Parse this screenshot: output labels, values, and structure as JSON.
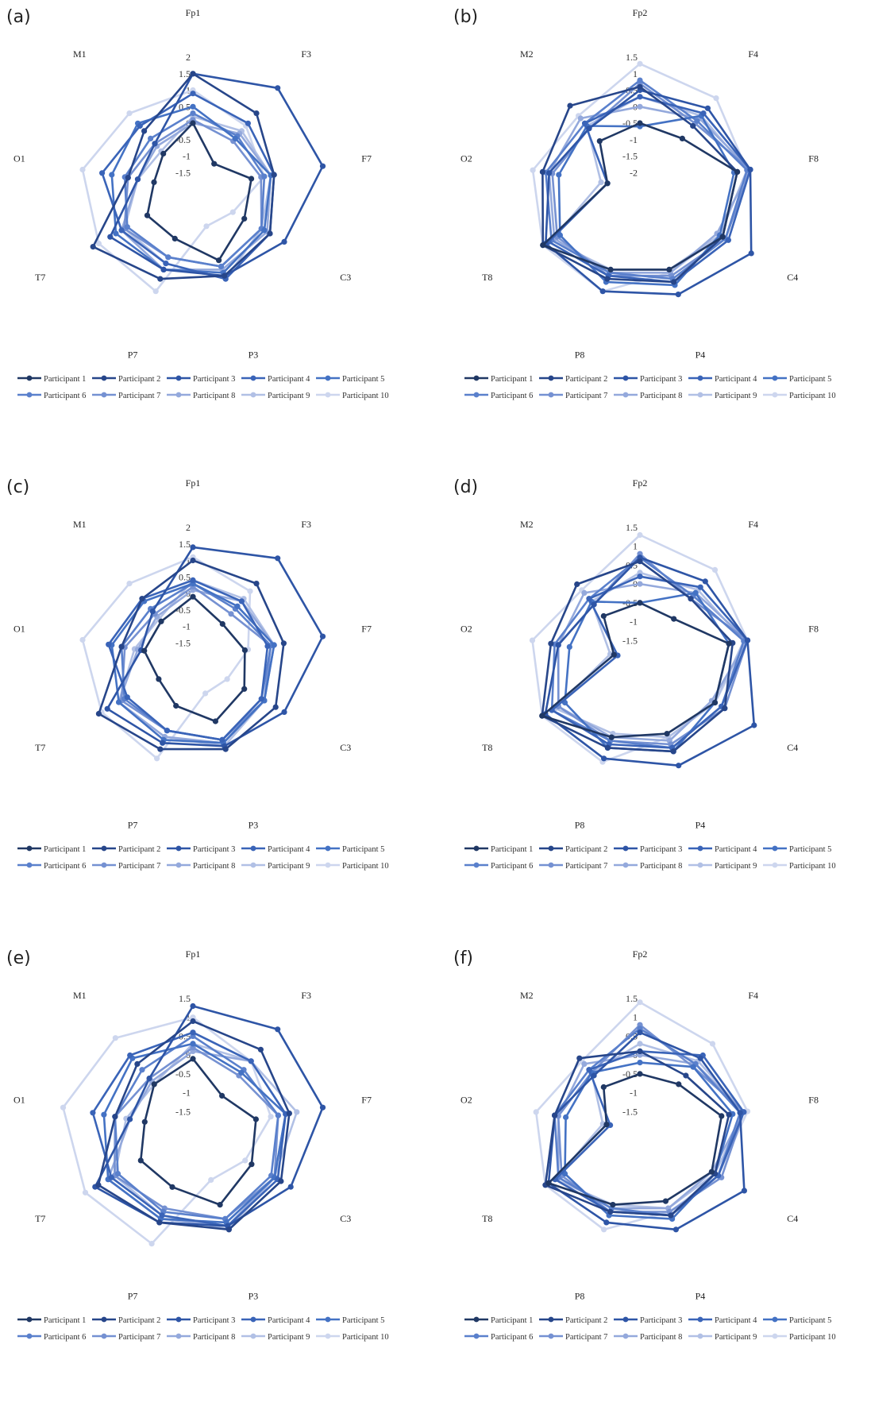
{
  "series_colors": [
    "#203864",
    "#27468a",
    "#2e55a6",
    "#3a64b8",
    "#4472c4",
    "#5a80cc",
    "#7591d2",
    "#94a9dc",
    "#b1c0e5",
    "#cdd6ee"
  ],
  "chart_data": [
    {
      "panel_label": "(a)",
      "type": "radar",
      "categories": [
        "Fp1",
        "F3",
        "F7",
        "C3",
        "P3",
        "P7",
        "T7",
        "O1",
        "M1"
      ],
      "tick_labels": [
        "-1.5",
        "-1",
        "-0.5",
        "0",
        "0.5",
        "1",
        "1.5",
        "2"
      ],
      "rmin": -2.0,
      "rmax": 2.0,
      "series": [
        {
          "name": "Participant 1",
          "values": [
            0.0,
            -1.0,
            -0.2,
            -0.2,
            0.3,
            -0.4,
            -0.4,
            -0.8,
            -0.6
          ]
        },
        {
          "name": "Participant 2",
          "values": [
            1.5,
            1.0,
            0.5,
            0.7,
            0.8,
            0.9,
            1.5,
            0.0,
            0.3
          ]
        },
        {
          "name": "Participant 3",
          "values": [
            1.5,
            2.0,
            2.0,
            1.2,
            0.8,
            0.6,
            0.9,
            -0.3,
            -0.2
          ]
        },
        {
          "name": "Participant 4",
          "values": [
            0.9,
            0.6,
            0.5,
            0.7,
            0.9,
            0.4,
            0.5,
            0.8,
            0.5
          ]
        },
        {
          "name": "Participant 5",
          "values": [
            0.5,
            0.0,
            0.4,
            0.5,
            0.7,
            0.6,
            0.7,
            0.5,
            0.6
          ]
        },
        {
          "name": "Participant 6",
          "values": [
            0.3,
            0.1,
            0.2,
            0.4,
            0.5,
            0.2,
            0.3,
            0.1,
            0.0
          ]
        },
        {
          "name": "Participant 7",
          "values": [
            0.1,
            -0.1,
            0.1,
            0.4,
            0.5,
            0.2,
            0.4,
            0.0,
            -0.2
          ]
        },
        {
          "name": "Participant 8",
          "values": [
            0.0,
            0.2,
            0.4,
            0.6,
            0.6,
            0.6,
            0.5,
            -0.3,
            -0.3
          ]
        },
        {
          "name": "Participant 9",
          "values": [
            0.2,
            0.3,
            0.4,
            0.4,
            0.9,
            0.4,
            0.4,
            -0.3,
            -0.5
          ]
        },
        {
          "name": "Participant 10",
          "values": [
            1.0,
            0.5,
            0.2,
            -0.6,
            -0.8,
            1.3,
            1.3,
            1.4,
            1.0
          ]
        }
      ]
    },
    {
      "panel_label": "(b)",
      "type": "radar",
      "categories": [
        "Fp2",
        "F4",
        "F8",
        "C4",
        "P4",
        "P8",
        "T8",
        "O2",
        "M2"
      ],
      "tick_labels": [
        "-2",
        "-1.5",
        "-1",
        "-0.5",
        "0",
        "0.5",
        "1",
        "1.5"
      ],
      "rmin": -2.5,
      "rmax": 1.5,
      "series": [
        {
          "name": "Participant 1",
          "values": [
            -0.5,
            -0.5,
            0.5,
            0.4,
            0.1,
            0.1,
            0.9,
            -1.5,
            -0.6
          ]
        },
        {
          "name": "Participant 2",
          "values": [
            0.6,
            0.0,
            0.5,
            0.4,
            0.5,
            0.4,
            0.9,
            0.5,
            0.8
          ]
        },
        {
          "name": "Participant 3",
          "values": [
            0.5,
            0.7,
            0.9,
            1.4,
            0.9,
            0.8,
            0.8,
            0.3,
            -0.1
          ]
        },
        {
          "name": "Participant 4",
          "values": [
            0.3,
            0.5,
            0.9,
            0.6,
            0.5,
            0.3,
            0.7,
            -1.5,
            0.1
          ]
        },
        {
          "name": "Participant 5",
          "values": [
            -0.6,
            0.4,
            0.4,
            0.3,
            0.6,
            0.5,
            0.3,
            0.0,
            0.0
          ]
        },
        {
          "name": "Participant 6",
          "values": [
            0.8,
            0.2,
            0.8,
            0.5,
            0.4,
            0.2,
            0.6,
            0.4,
            0.1
          ]
        },
        {
          "name": "Participant 7",
          "values": [
            0.7,
            0.1,
            0.9,
            0.5,
            0.3,
            0.3,
            0.4,
            0.2,
            -0.1
          ]
        },
        {
          "name": "Participant 8",
          "values": [
            0.0,
            0.3,
            0.9,
            0.2,
            0.2,
            0.2,
            0.5,
            0.3,
            0.3
          ]
        },
        {
          "name": "Participant 9",
          "values": [
            0.3,
            0.4,
            0.8,
            0.3,
            0.1,
            0.1,
            0.6,
            -1.3,
            0.0
          ]
        },
        {
          "name": "Participant 10",
          "values": [
            1.3,
            1.1,
            0.8,
            0.3,
            0.2,
            0.8,
            0.9,
            0.8,
            0.4
          ]
        }
      ]
    },
    {
      "panel_label": "(c)",
      "type": "radar",
      "categories": [
        "Fp1",
        "F3",
        "F7",
        "C3",
        "P3",
        "P7",
        "T7",
        "O1",
        "M1"
      ],
      "tick_labels": [
        "-1.5",
        "-1",
        "-0.5",
        "0",
        "0.5",
        "1",
        "1.5",
        "2"
      ],
      "rmin": -2.0,
      "rmax": 2.0,
      "series": [
        {
          "name": "Participant 1",
          "values": [
            -0.1,
            -0.6,
            -0.4,
            -0.2,
            0.0,
            -0.5,
            -0.8,
            -0.5,
            -0.5
          ]
        },
        {
          "name": "Participant 2",
          "values": [
            1.0,
            1.0,
            0.8,
            0.9,
            0.9,
            0.9,
            1.3,
            0.2,
            0.4
          ]
        },
        {
          "name": "Participant 3",
          "values": [
            1.4,
            2.0,
            2.0,
            1.2,
            0.8,
            0.7,
            1.0,
            -0.4,
            -0.1
          ]
        },
        {
          "name": "Participant 4",
          "values": [
            0.4,
            0.3,
            0.3,
            0.4,
            0.6,
            0.3,
            0.3,
            0.6,
            0.4
          ]
        },
        {
          "name": "Participant 5",
          "values": [
            0.3,
            0.1,
            0.5,
            0.5,
            0.7,
            0.6,
            0.6,
            0.5,
            0.3
          ]
        },
        {
          "name": "Participant 6",
          "values": [
            0.3,
            0.0,
            0.4,
            0.4,
            0.6,
            0.3,
            0.4,
            0.2,
            0.0
          ]
        },
        {
          "name": "Participant 7",
          "values": [
            0.2,
            -0.2,
            0.4,
            0.5,
            0.6,
            0.3,
            0.5,
            0.1,
            -0.2
          ]
        },
        {
          "name": "Participant 8",
          "values": [
            0.1,
            0.3,
            0.5,
            0.5,
            0.7,
            0.5,
            0.6,
            -0.3,
            -0.3
          ]
        },
        {
          "name": "Participant 9",
          "values": [
            0.4,
            0.4,
            0.5,
            0.5,
            0.8,
            0.5,
            0.6,
            -0.2,
            -0.4
          ]
        },
        {
          "name": "Participant 10",
          "values": [
            1.1,
            0.7,
            -0.3,
            -0.8,
            -0.9,
            1.2,
            1.2,
            1.4,
            1.0
          ]
        }
      ]
    },
    {
      "panel_label": "(d)",
      "type": "radar",
      "categories": [
        "Fp2",
        "F4",
        "F8",
        "C4",
        "P4",
        "P8",
        "T8",
        "O2",
        "M2"
      ],
      "tick_labels": [
        "-1.5",
        "-1",
        "-0.5",
        "0",
        "0.5",
        "1",
        "1.5"
      ],
      "rmin": -2.0,
      "rmax": 1.5,
      "series": [
        {
          "name": "Participant 1",
          "values": [
            -0.5,
            -0.6,
            0.4,
            0.3,
            0.1,
            0.2,
            1.0,
            -1.3,
            -0.5
          ]
        },
        {
          "name": "Participant 2",
          "values": [
            0.6,
            0.1,
            0.5,
            0.6,
            0.6,
            0.5,
            1.0,
            0.4,
            0.6
          ]
        },
        {
          "name": "Participant 3",
          "values": [
            0.7,
            0.7,
            0.9,
            1.5,
            1.0,
            0.8,
            0.9,
            0.2,
            -0.1
          ]
        },
        {
          "name": "Participant 4",
          "values": [
            0.2,
            0.5,
            0.9,
            0.5,
            0.5,
            0.4,
            0.7,
            -1.4,
            0.1
          ]
        },
        {
          "name": "Participant 5",
          "values": [
            -0.5,
            0.3,
            0.4,
            0.3,
            0.6,
            0.5,
            0.3,
            -0.1,
            0.0
          ]
        },
        {
          "name": "Participant 6",
          "values": [
            0.7,
            0.2,
            0.8,
            0.5,
            0.5,
            0.3,
            0.7,
            0.3,
            0.1
          ]
        },
        {
          "name": "Participant 7",
          "values": [
            0.8,
            0.1,
            0.9,
            0.6,
            0.4,
            0.3,
            0.5,
            0.2,
            -0.1
          ]
        },
        {
          "name": "Participant 8",
          "values": [
            0.0,
            0.3,
            0.9,
            0.2,
            0.3,
            0.2,
            0.5,
            0.2,
            0.3
          ]
        },
        {
          "name": "Participant 9",
          "values": [
            0.3,
            0.4,
            0.8,
            0.3,
            0.2,
            0.1,
            0.6,
            -1.2,
            0.0
          ]
        },
        {
          "name": "Participant 10",
          "values": [
            1.3,
            1.1,
            0.9,
            0.3,
            0.2,
            0.9,
            1.0,
            0.9,
            0.4
          ]
        }
      ]
    },
    {
      "panel_label": "(e)",
      "type": "radar",
      "categories": [
        "Fp1",
        "F3",
        "F7",
        "C3",
        "P3",
        "P7",
        "T7",
        "O1",
        "M1"
      ],
      "tick_labels": [
        "-1.5",
        "-1",
        "-0.5",
        "0",
        "0.5",
        "1",
        "1.5"
      ],
      "rmin": -2.0,
      "rmax": 1.5,
      "series": [
        {
          "name": "Participant 1",
          "values": [
            -0.1,
            -0.8,
            -0.3,
            -0.2,
            0.1,
            -0.4,
            -0.4,
            -0.7,
            -0.4
          ]
        },
        {
          "name": "Participant 2",
          "values": [
            0.9,
            0.8,
            0.6,
            0.7,
            0.8,
            0.6,
            0.9,
            0.1,
            0.3
          ]
        },
        {
          "name": "Participant 3",
          "values": [
            1.3,
            1.5,
            1.5,
            1.0,
            0.7,
            0.6,
            1.0,
            -0.3,
            -0.2
          ]
        },
        {
          "name": "Participant 4",
          "values": [
            0.6,
            0.4,
            0.5,
            0.6,
            0.7,
            0.4,
            0.5,
            0.7,
            0.6
          ]
        },
        {
          "name": "Participant 5",
          "values": [
            0.3,
            0.0,
            0.5,
            0.5,
            0.6,
            0.5,
            0.6,
            0.4,
            0.5
          ]
        },
        {
          "name": "Participant 6",
          "values": [
            0.5,
            0.1,
            0.3,
            0.4,
            0.5,
            0.3,
            0.3,
            0.1,
            0.1
          ]
        },
        {
          "name": "Participant 7",
          "values": [
            0.2,
            -0.1,
            0.3,
            0.5,
            0.5,
            0.2,
            0.4,
            0.1,
            -0.2
          ]
        },
        {
          "name": "Participant 8",
          "values": [
            0.1,
            0.4,
            0.5,
            0.5,
            0.7,
            0.5,
            0.6,
            -0.3,
            -0.3
          ]
        },
        {
          "name": "Participant 9",
          "values": [
            0.3,
            0.4,
            0.8,
            0.5,
            0.8,
            0.4,
            0.4,
            -0.2,
            -0.4
          ]
        },
        {
          "name": "Participant 10",
          "values": [
            1.0,
            0.4,
            0.1,
            -0.4,
            -0.6,
            1.2,
            1.3,
            1.5,
            1.2
          ]
        }
      ]
    },
    {
      "panel_label": "(f)",
      "type": "radar",
      "categories": [
        "Fp2",
        "F4",
        "F8",
        "C4",
        "P4",
        "P8",
        "T8",
        "O2",
        "M2"
      ],
      "tick_labels": [
        "-1.5",
        "-1",
        "-0.5",
        "0",
        "0.5",
        "1",
        "1.5"
      ],
      "rmin": -2.0,
      "rmax": 1.5,
      "series": [
        {
          "name": "Participant 1",
          "values": [
            -0.5,
            -0.4,
            0.2,
            0.2,
            0.0,
            0.1,
            0.8,
            -1.1,
            -0.5
          ]
        },
        {
          "name": "Participant 2",
          "values": [
            0.1,
            -0.1,
            0.4,
            0.3,
            0.4,
            0.3,
            0.9,
            0.3,
            0.5
          ]
        },
        {
          "name": "Participant 3",
          "values": [
            0.6,
            0.5,
            0.7,
            1.2,
            0.8,
            0.6,
            0.8,
            0.3,
            -0.1
          ]
        },
        {
          "name": "Participant 4",
          "values": [
            0.1,
            0.6,
            0.8,
            0.4,
            0.4,
            0.3,
            0.6,
            -1.2,
            0.1
          ]
        },
        {
          "name": "Participant 5",
          "values": [
            -0.2,
            0.2,
            0.5,
            0.3,
            0.5,
            0.4,
            0.3,
            0.0,
            0.0
          ]
        },
        {
          "name": "Participant 6",
          "values": [
            0.7,
            0.3,
            0.7,
            0.4,
            0.4,
            0.2,
            0.5,
            0.3,
            0.1
          ]
        },
        {
          "name": "Participant 7",
          "values": [
            0.8,
            0.2,
            0.8,
            0.5,
            0.3,
            0.3,
            0.4,
            0.2,
            0.0
          ]
        },
        {
          "name": "Participant 8",
          "values": [
            0.0,
            0.3,
            0.8,
            0.2,
            0.2,
            0.2,
            0.5,
            0.2,
            0.3
          ]
        },
        {
          "name": "Participant 9",
          "values": [
            0.3,
            0.4,
            0.8,
            0.3,
            0.2,
            0.1,
            0.6,
            -1.0,
            0.0
          ]
        },
        {
          "name": "Participant 10",
          "values": [
            1.4,
            1.0,
            0.9,
            0.4,
            0.3,
            0.8,
            0.9,
            0.8,
            0.4
          ]
        }
      ]
    }
  ]
}
